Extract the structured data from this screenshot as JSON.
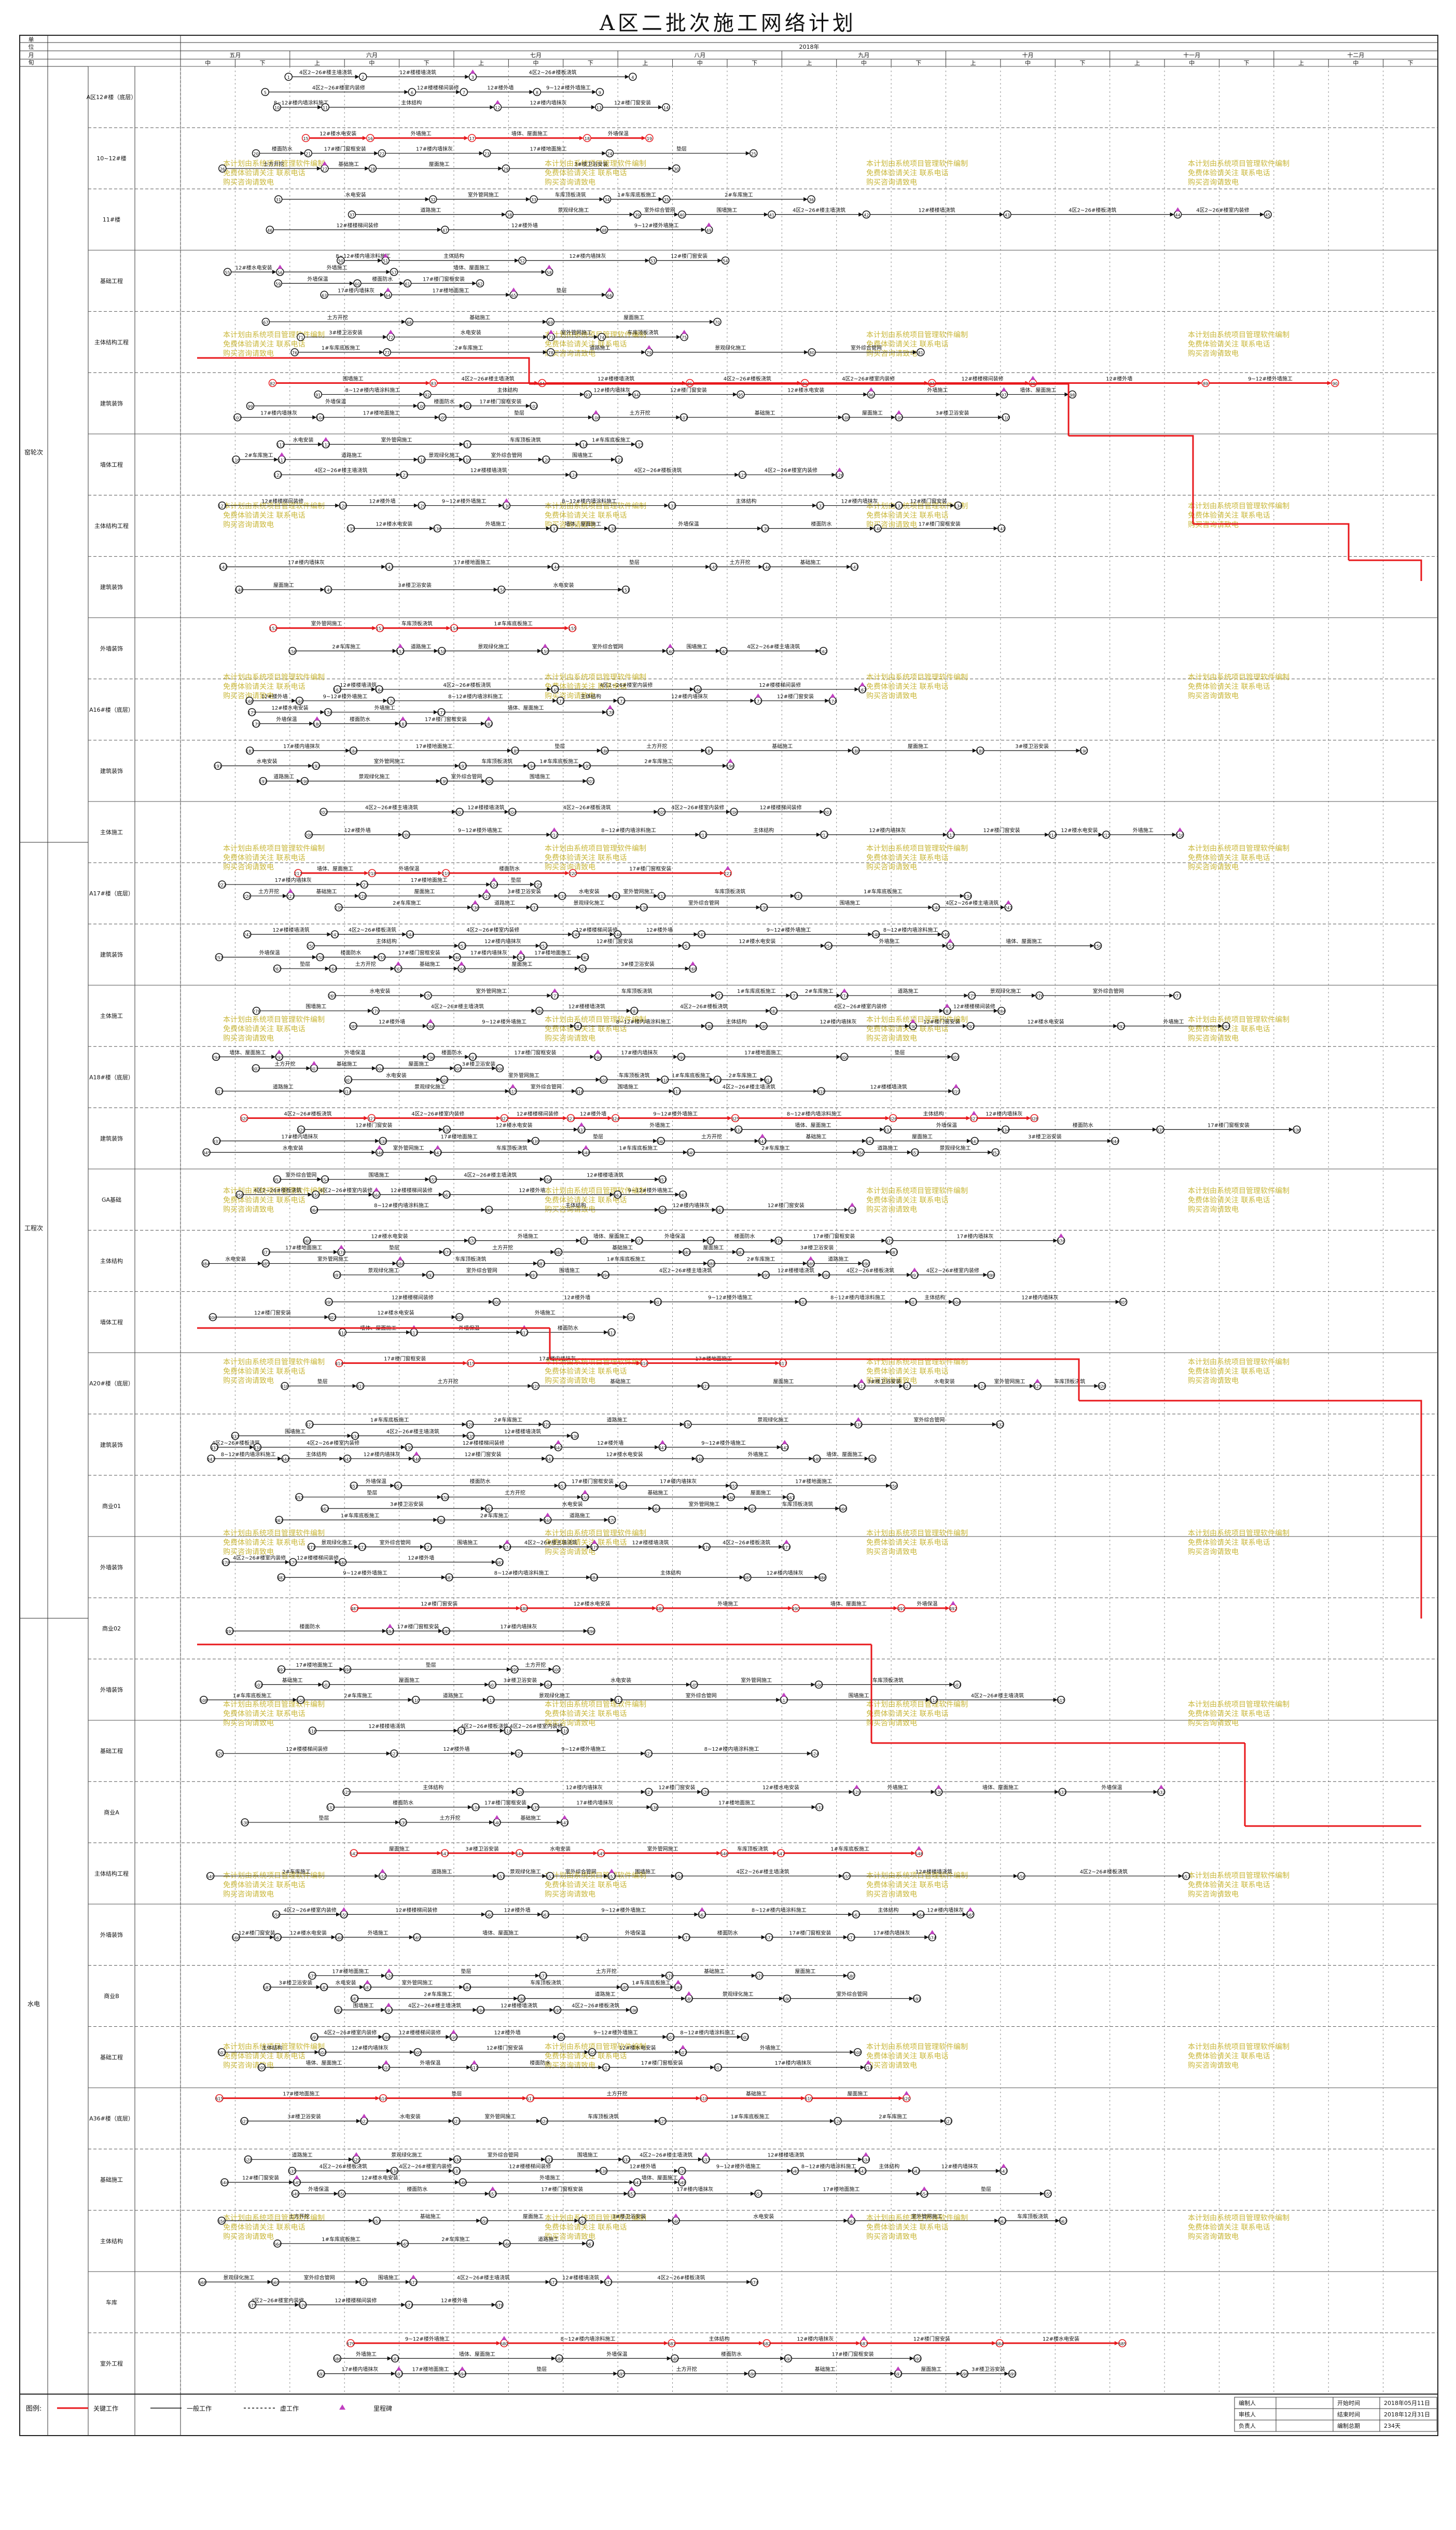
{
  "title": "A区二批次施工网络计划",
  "header": {
    "year_label": "2018年",
    "corner_labels": [
      "单",
      "位",
      "月",
      "旬"
    ],
    "months": [
      {
        "name": "五月",
        "dekads": [
          "中",
          "下"
        ]
      },
      {
        "name": "六月",
        "dekads": [
          "上",
          "中",
          "下"
        ]
      },
      {
        "name": "七月",
        "dekads": [
          "上",
          "中",
          "下"
        ]
      },
      {
        "name": "八月",
        "dekads": [
          "上",
          "中",
          "下"
        ]
      },
      {
        "name": "九月",
        "dekads": [
          "上",
          "中",
          "下"
        ]
      },
      {
        "name": "十月",
        "dekads": [
          "上",
          "中",
          "下"
        ]
      },
      {
        "name": "十一月",
        "dekads": [
          "上",
          "中",
          "下"
        ]
      },
      {
        "name": "十二月",
        "dekads": [
          "上",
          "中",
          "下"
        ]
      }
    ]
  },
  "left_groups": [
    {
      "label": "窑轮次"
    },
    {
      "label": "工程次"
    },
    {
      "label": "水电"
    }
  ],
  "sections": [
    {
      "label": "A区12#楼（底层）"
    },
    {
      "label": "10~12#楼"
    },
    {
      "label": "11#楼"
    },
    {
      "label": "基础工程"
    },
    {
      "label": "主体结构工程"
    },
    {
      "label": "建筑装饰"
    },
    {
      "label": "墙体工程"
    },
    {
      "label": "主体结构工程"
    },
    {
      "label": "建筑装饰"
    },
    {
      "label": "外墙装饰"
    },
    {
      "label": "A16#楼（底层）"
    },
    {
      "label": "建筑装饰"
    },
    {
      "label": "主体施工"
    },
    {
      "label": "A17#楼（底层）"
    },
    {
      "label": "建筑装饰"
    },
    {
      "label": "主体施工"
    },
    {
      "label": "A18#楼（底层）"
    },
    {
      "label": "建筑装饰"
    },
    {
      "label": "GA基础"
    },
    {
      "label": "主体结构"
    },
    {
      "label": "墙体工程"
    },
    {
      "label": "A20#楼（底层）"
    },
    {
      "label": "建筑装饰"
    },
    {
      "label": "商业01"
    },
    {
      "label": "外墙装饰"
    },
    {
      "label": "商业02"
    },
    {
      "label": "外墙装饰"
    },
    {
      "label": "基础工程"
    },
    {
      "label": "商业A"
    },
    {
      "label": "主体结构工程"
    },
    {
      "label": "外墙装饰"
    },
    {
      "label": "商业B"
    },
    {
      "label": "基础工程"
    },
    {
      "label": "A36#楼（底层）"
    },
    {
      "label": "基础施工"
    },
    {
      "label": "主体结构"
    },
    {
      "label": "车库"
    },
    {
      "label": "室外工程"
    }
  ],
  "task_labels": [
    "4区2~26#楼主墙浇筑",
    "12#楼楼墙浇筑",
    "4区2~26#楼板浇筑",
    "4区2~26#楼室内装修",
    "12#楼楼梯间装修",
    "12#楼外墙",
    "9~12#楼外墙施工",
    "8~12#楼内墙涂料施工",
    "主体结构",
    "12#楼内墙抹灰",
    "12#楼门窗安装",
    "12#楼水电安装",
    "外墙施工",
    "墙体、屋面施工",
    "外墙保温",
    "楼面防水",
    "17#楼门窗框安装",
    "17#楼内墙抹灰",
    "17#楼地面施工",
    "垫层",
    "土方开挖",
    "基础施工",
    "屋面施工",
    "3#楼卫浴安装",
    "水电安装",
    "室外管网施工",
    "车库顶板浇筑",
    "1#车库底板施工",
    "2#车库施工",
    "道路施工",
    "景观绿化施工",
    "室外综合管网",
    "围墙施工"
  ],
  "watermark": {
    "line1": "本计划由系统项目管理软件编制",
    "line2": "免费体验请关注 联系电话",
    "line3": "购买咨询请致电"
  },
  "legend": {
    "label": "图例:",
    "items": [
      "关键工作",
      "一般工作",
      "虚工作",
      "里程碑"
    ]
  },
  "info_box": {
    "rows": [
      {
        "k": "编制人",
        "v": "",
        "k2": "开始时间",
        "v2": "2018年05月11日"
      },
      {
        "k": "审核人",
        "v": "",
        "k2": "结束时间",
        "v2": "2018年12月31日"
      },
      {
        "k": "负责人",
        "v": "",
        "k2": "编制总期",
        "v2": "234天"
      }
    ]
  },
  "colors": {
    "critical": "#e8171b",
    "normal": "#111111",
    "milestone": "#c040c0",
    "grid": "#555555",
    "watermark": "#c9b73a"
  }
}
